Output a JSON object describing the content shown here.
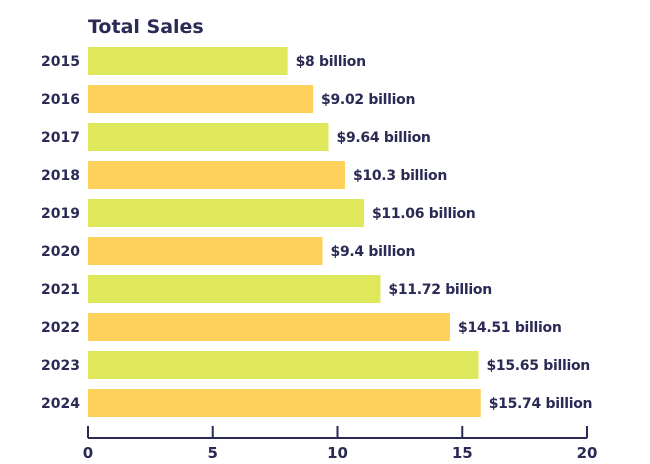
{
  "chart_data": {
    "type": "bar",
    "orientation": "horizontal",
    "title": "Total Sales",
    "xlabel": "",
    "ylabel": "",
    "categories": [
      "2015",
      "2016",
      "2017",
      "2018",
      "2019",
      "2020",
      "2021",
      "2022",
      "2023",
      "2024"
    ],
    "values": [
      8,
      9.02,
      9.64,
      10.3,
      11.06,
      9.4,
      11.72,
      14.51,
      15.65,
      15.74
    ],
    "data_labels": [
      "$8 billion",
      "$9.02 billion",
      "$9.64 billion",
      "$10.3 billion",
      "$11.06 billion",
      "$9.4 billion",
      "$11.72 billion",
      "$14.51 billion",
      "$15.65 billion",
      "$15.74 billion"
    ],
    "xlim": [
      0,
      20
    ],
    "xticks": [
      "0",
      "5",
      "10",
      "15",
      "20"
    ],
    "grid": false,
    "legend": "none",
    "colors": {
      "bar_odd": "#dfe75a",
      "bar_even": "#fdd15b",
      "text": "#2b2a55"
    }
  }
}
